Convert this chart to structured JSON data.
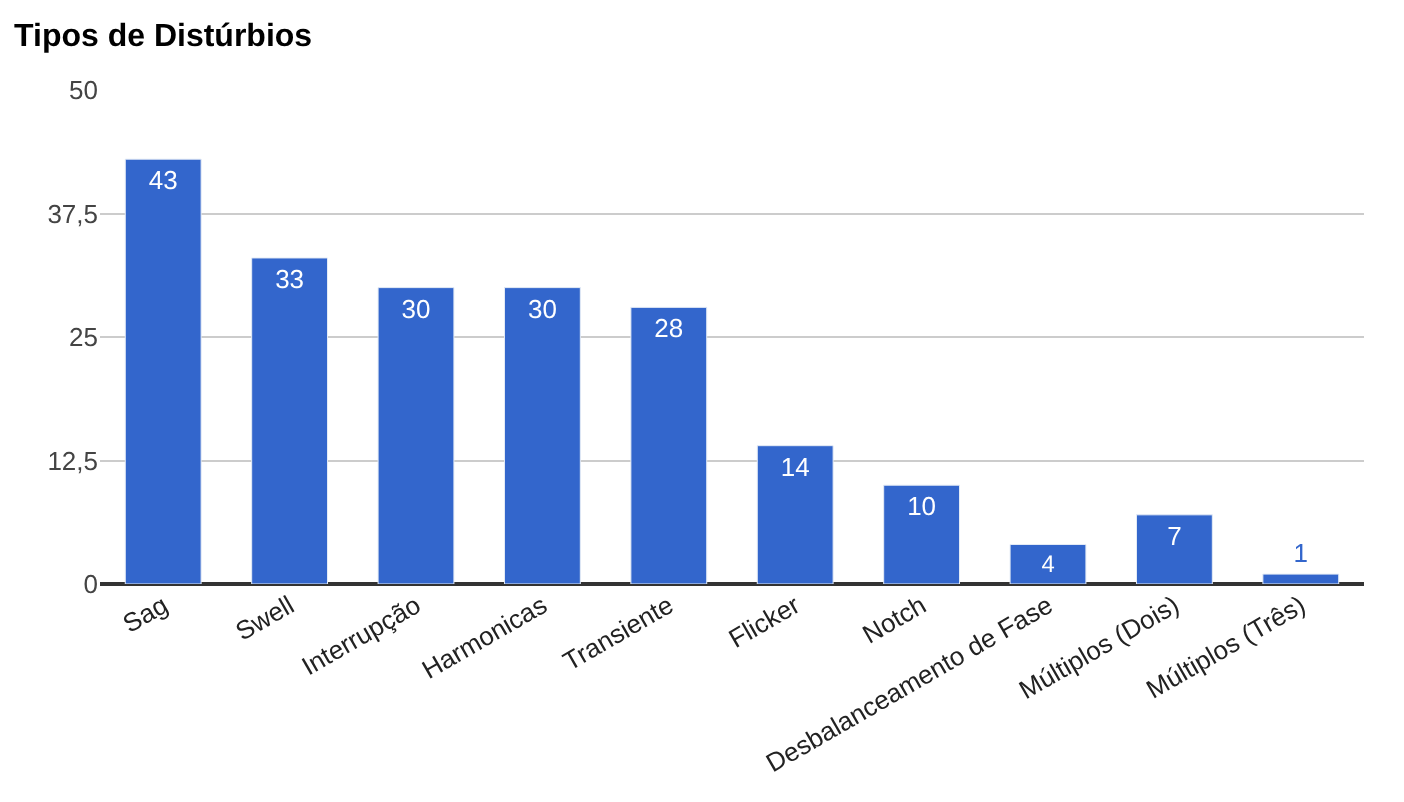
{
  "chart_data": {
    "type": "bar",
    "title": "Tipos de Distúrbios",
    "categories": [
      "Sag",
      "Swell",
      "Interrupção",
      "Harmonicas",
      "Transiente",
      "Flicker",
      "Notch",
      "Desbalanceamento de Fase",
      "Múltiplos (Dois)",
      "Múltiplos (Três)"
    ],
    "values": [
      43,
      33,
      30,
      30,
      28,
      14,
      10,
      4,
      7,
      1
    ],
    "color": "#3366cc",
    "ylim": [
      0,
      50
    ],
    "yticks": [
      0,
      {
        "value": 12.5,
        "label": "12,5"
      },
      25,
      {
        "value": 37.5,
        "label": "37,5"
      },
      50
    ],
    "grid": "y",
    "data_labels": true,
    "legend": false
  }
}
